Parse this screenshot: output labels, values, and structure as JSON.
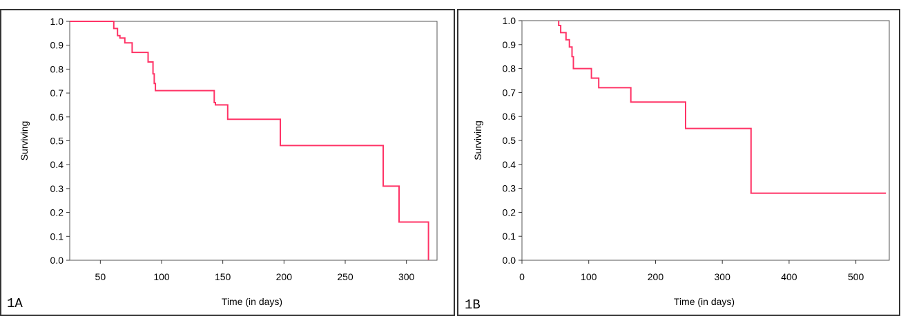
{
  "chart_data": [
    {
      "type": "line",
      "step": true,
      "panel_label": "1A",
      "xlabel": "Time (in days)",
      "ylabel": "Surviving",
      "xlim": [
        25,
        325
      ],
      "ylim": [
        0,
        1
      ],
      "x_ticks": [
        50,
        100,
        150,
        200,
        250,
        300
      ],
      "y_ticks": [
        0.0,
        0.1,
        0.2,
        0.3,
        0.4,
        0.5,
        0.6,
        0.7,
        0.8,
        0.9,
        1.0
      ],
      "color": "#ff3366",
      "series": [
        {
          "x": [
            25,
            61,
            61,
            64,
            64,
            66,
            66,
            70,
            70,
            76,
            76,
            89,
            89,
            93,
            93,
            94,
            94,
            95,
            95,
            143,
            143,
            144,
            144,
            154,
            154,
            197,
            197,
            281,
            281,
            294,
            294,
            318,
            318
          ],
          "y": [
            1.0,
            1.0,
            0.97,
            0.97,
            0.94,
            0.94,
            0.93,
            0.93,
            0.91,
            0.91,
            0.87,
            0.87,
            0.83,
            0.83,
            0.78,
            0.78,
            0.74,
            0.74,
            0.71,
            0.71,
            0.66,
            0.66,
            0.65,
            0.65,
            0.59,
            0.59,
            0.48,
            0.48,
            0.31,
            0.31,
            0.16,
            0.16,
            0.0
          ]
        }
      ]
    },
    {
      "type": "line",
      "step": true,
      "panel_label": "1B",
      "xlabel": "Time (in days)",
      "ylabel": "Surviving",
      "xlim": [
        0,
        550
      ],
      "ylim": [
        0,
        1
      ],
      "x_ticks": [
        0,
        100,
        200,
        300,
        400,
        500
      ],
      "y_ticks": [
        0.0,
        0.1,
        0.2,
        0.3,
        0.4,
        0.5,
        0.6,
        0.7,
        0.8,
        0.9,
        1.0
      ],
      "color": "#ff3366",
      "series": [
        {
          "x": [
            55,
            55,
            58,
            58,
            66,
            66,
            71,
            71,
            75,
            75,
            77,
            77,
            104,
            104,
            115,
            115,
            163,
            163,
            245,
            245,
            343,
            343,
            545
          ],
          "y": [
            1.0,
            0.98,
            0.98,
            0.95,
            0.95,
            0.92,
            0.92,
            0.89,
            0.89,
            0.85,
            0.85,
            0.8,
            0.8,
            0.76,
            0.76,
            0.72,
            0.72,
            0.66,
            0.66,
            0.55,
            0.55,
            0.28,
            0.28
          ]
        }
      ]
    }
  ]
}
